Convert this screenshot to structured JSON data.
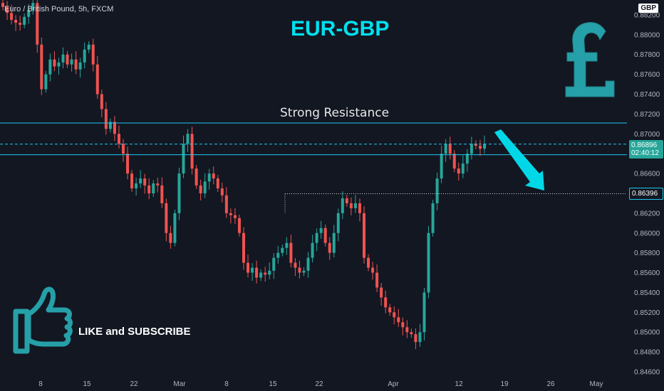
{
  "header": {
    "symbol_label": "Euro / British Pound, 5h, FXCM",
    "currency": "GBP"
  },
  "annotations": {
    "title": "EUR-GBP",
    "resistance_label": "Strong Resistance",
    "cta": "LIKE and SUBSCRIBE"
  },
  "icons": {
    "pound": "pound-sign-icon",
    "thumbs_up": "thumbs-up-icon",
    "arrow": "down-arrow-icon"
  },
  "price_tags": {
    "last_price": "0.86896",
    "countdown": "02:40:12",
    "level": "0.86396"
  },
  "colors": {
    "background": "#131722",
    "up": "#26a69a",
    "down": "#ef5350",
    "accent": "#00e0f0",
    "thumb": "#26a0a8"
  },
  "chart_data": {
    "type": "candlestick",
    "x_ticks": [
      "8",
      "15",
      "22",
      "Mar",
      "8",
      "15",
      "22",
      "Apr",
      "12",
      "19",
      "26",
      "May"
    ],
    "y_ticks": [
      "0.88200",
      "0.88000",
      "0.87800",
      "0.87600",
      "0.87400",
      "0.87200",
      "0.87000",
      "0.86800",
      "0.86600",
      "0.86400",
      "0.86200",
      "0.86000",
      "0.85800",
      "0.85600",
      "0.85400",
      "0.85200",
      "0.85000",
      "0.84800",
      "0.84600"
    ],
    "ylim": [
      0.8455,
      0.8835
    ],
    "closes": [
      0.8828,
      0.8822,
      0.8815,
      0.8812,
      0.881,
      0.8818,
      0.8825,
      0.8832,
      0.879,
      0.8745,
      0.876,
      0.8775,
      0.8768,
      0.8772,
      0.878,
      0.877,
      0.8775,
      0.8765,
      0.8772,
      0.8785,
      0.879,
      0.877,
      0.874,
      0.8725,
      0.8705,
      0.8712,
      0.87,
      0.869,
      0.868,
      0.866,
      0.8645,
      0.865,
      0.8655,
      0.8648,
      0.864,
      0.865,
      0.8648,
      0.863,
      0.86,
      0.859,
      0.862,
      0.866,
      0.869,
      0.87,
      0.8665,
      0.8648,
      0.864,
      0.8652,
      0.866,
      0.8655,
      0.8645,
      0.8638,
      0.862,
      0.8618,
      0.8615,
      0.86,
      0.857,
      0.856,
      0.8565,
      0.8555,
      0.856,
      0.8558,
      0.8562,
      0.8575,
      0.858,
      0.8585,
      0.859,
      0.857,
      0.8565,
      0.856,
      0.8562,
      0.8575,
      0.859,
      0.86,
      0.8605,
      0.859,
      0.858,
      0.86,
      0.862,
      0.8635,
      0.863,
      0.8625,
      0.863,
      0.862,
      0.8575,
      0.8565,
      0.856,
      0.8545,
      0.8535,
      0.8525,
      0.852,
      0.8515,
      0.851,
      0.8505,
      0.85,
      0.8498,
      0.849,
      0.85,
      0.854,
      0.86,
      0.863,
      0.8655,
      0.868,
      0.869,
      0.868,
      0.8665,
      0.866,
      0.867,
      0.868,
      0.869,
      0.8688,
      0.8685,
      0.869
    ],
    "resistance_lines": [
      0.8711,
      0.8679
    ],
    "dashed_line": 0.86896,
    "dotted_level": 0.86396
  }
}
